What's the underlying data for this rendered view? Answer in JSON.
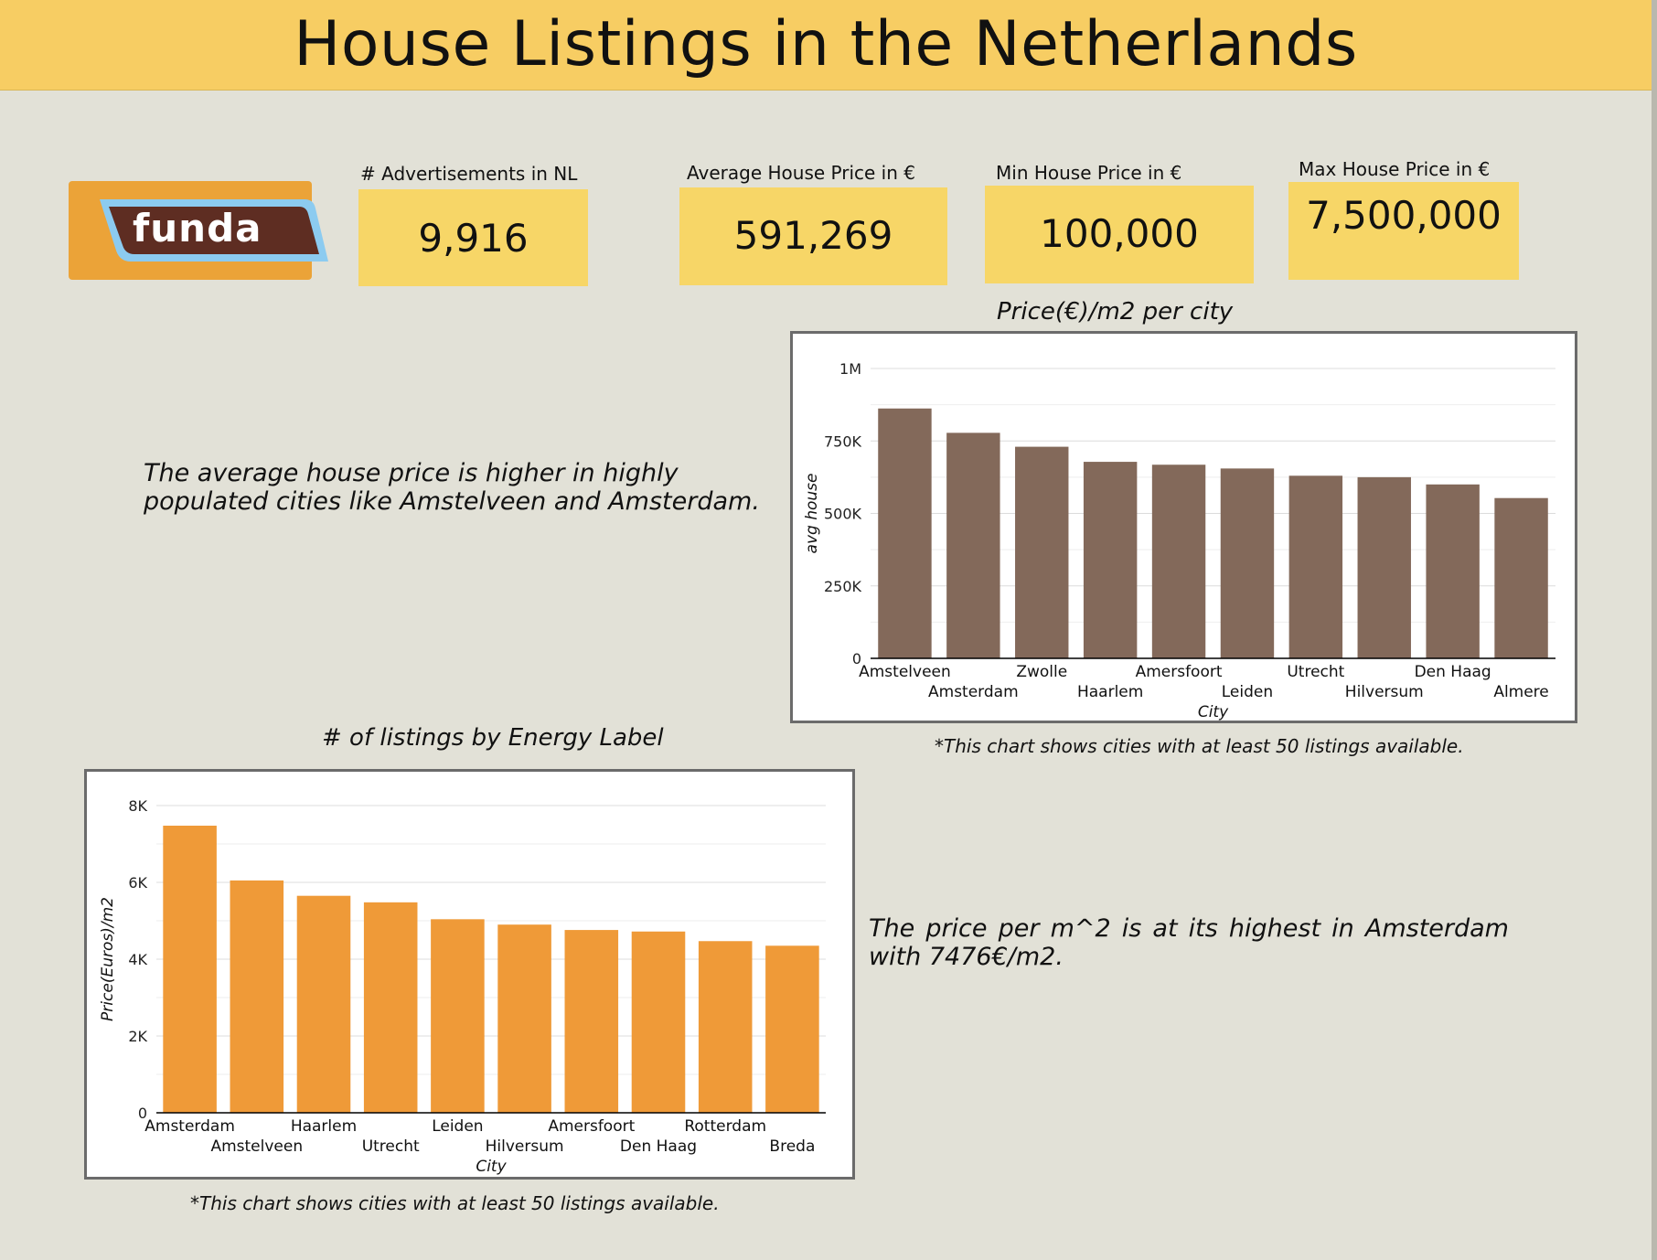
{
  "header": {
    "title": "House Listings in the Netherlands"
  },
  "logo": {
    "text": "funda"
  },
  "kpis": [
    {
      "label": "# Advertisements in NL",
      "value": "9,916"
    },
    {
      "label": "Average House Price in €",
      "value": "591,269"
    },
    {
      "label": "Min House Price in €",
      "value": "100,000"
    },
    {
      "label": "Max House Price in €",
      "value": "7,500,000"
    }
  ],
  "notes": {
    "avg_price": "The average house price is higher in highly populated cities like Amstelveen and Amsterdam.",
    "price_m2": "The price per m^2 is at its highest in Amsterdam with 7476€/m2."
  },
  "footnotes": {
    "chart1": "*This chart shows cities with at least 50 listings available.",
    "chart2": "*This chart shows cities with at least 50 listings available."
  },
  "chart_data": [
    {
      "type": "bar",
      "title": "Price(€)/m2 per city",
      "xlabel": "City",
      "ylabel": "avg house",
      "ylim": [
        0,
        1000000
      ],
      "yticks": [
        0,
        250000,
        500000,
        750000,
        1000000
      ],
      "ytick_labels": [
        "0",
        "250K",
        "500K",
        "750K",
        "1M"
      ],
      "grid": true,
      "color": "#83695a",
      "categories": [
        "Amstelveen",
        "Amsterdam",
        "Zwolle",
        "Haarlem",
        "Amersfoort",
        "Leiden",
        "Utrecht",
        "Hilversum",
        "Den Haag",
        "Almere"
      ],
      "values": [
        862000,
        778000,
        730000,
        678000,
        668000,
        655000,
        630000,
        625000,
        600000,
        553000
      ]
    },
    {
      "type": "bar",
      "title": "# of listings by Energy Label",
      "xlabel": "City",
      "ylabel": "Price(Euros)/m2",
      "ylim": [
        0,
        8000
      ],
      "yticks": [
        0,
        2000,
        4000,
        6000,
        8000
      ],
      "ytick_labels": [
        "0",
        "2K",
        "4K",
        "6K",
        "8K"
      ],
      "grid": true,
      "color": "#ef9a38",
      "categories": [
        "Amsterdam",
        "Amstelveen",
        "Haarlem",
        "Utrecht",
        "Leiden",
        "Hilversum",
        "Amersfoort",
        "Den Haag",
        "Rotterdam",
        "Breda"
      ],
      "values": [
        7476,
        6050,
        5650,
        5480,
        5040,
        4900,
        4760,
        4720,
        4470,
        4350
      ]
    }
  ]
}
